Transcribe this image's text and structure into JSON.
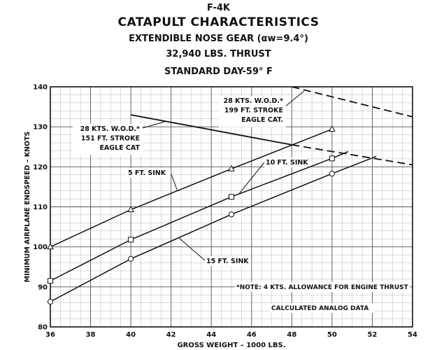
{
  "header": {
    "line1": "F-4K",
    "line2": "CATAPULT CHARACTERISTICS",
    "line3": "EXTENDIBLE NOSE GEAR (αw=9.4°)",
    "line4": "32,940 LBS. THRUST",
    "line5": "STANDARD DAY-59° F"
  },
  "chart_data": {
    "type": "line",
    "xlabel": "GROSS WEIGHT – 1000 LBS.",
    "ylabel": "MINIMUM AIRPLANE ENDSPEED – KNOTS",
    "xlim": [
      36,
      54
    ],
    "ylim": [
      80,
      140
    ],
    "xticks": [
      "36",
      "38",
      "40",
      "42",
      "44",
      "46",
      "48",
      "50",
      "52",
      "54"
    ],
    "yticks": [
      "80",
      "90",
      "100",
      "110",
      "120",
      "130",
      "140"
    ],
    "grid": true,
    "series": [
      {
        "name": "5 FT. SINK",
        "marker": "triangle",
        "style": "solid",
        "x": [
          36,
          40,
          45,
          50
        ],
        "y": [
          100,
          109.3,
          119.5,
          129.4
        ],
        "extend_to": [
          50,
          129.4
        ]
      },
      {
        "name": "10 FT. SINK",
        "marker": "square",
        "style": "solid",
        "x": [
          36,
          40,
          45,
          50
        ],
        "y": [
          91.5,
          101.8,
          112.5,
          122.1
        ],
        "extend_to": [
          50.8,
          123.8
        ]
      },
      {
        "name": "15 FT. SINK",
        "marker": "circle",
        "style": "solid",
        "x": [
          36,
          40,
          45,
          50
        ],
        "y": [
          86.3,
          97,
          108.1,
          118.3
        ],
        "extend_to": [
          52.2,
          122.6
        ]
      },
      {
        "name": "28 KTS. W.O.D.* 151 FT. STROKE EAGLE CAT",
        "marker": "none",
        "style": "solid-then-dashed",
        "x": [
          40,
          48,
          54
        ],
        "y": [
          133,
          125.5,
          120.5
        ],
        "dash_from": 48
      },
      {
        "name": "28 KTS. W.O.D.* 199 FT. STROKE EAGLE CAT.",
        "marker": "none",
        "style": "dashed",
        "x": [
          48,
          54
        ],
        "y": [
          140,
          132.5
        ]
      }
    ],
    "annotations": {
      "label_151": [
        "28 KTS. W.O.D.*",
        "151 FT. STROKE",
        "EAGLE CAT"
      ],
      "label_199": [
        "28 KTS. W.O.D.*",
        "199 FT. STROKE",
        "EAGLE CAT."
      ],
      "label_5ft": "5 FT. SINK",
      "label_10ft": "10 FT. SINK",
      "label_15ft": "15 FT. SINK",
      "note": "*NOTE: 4 KTS. ALLOWANCE FOR ENGINE THRUST",
      "source": "CALCULATED ANALOG DATA"
    }
  }
}
